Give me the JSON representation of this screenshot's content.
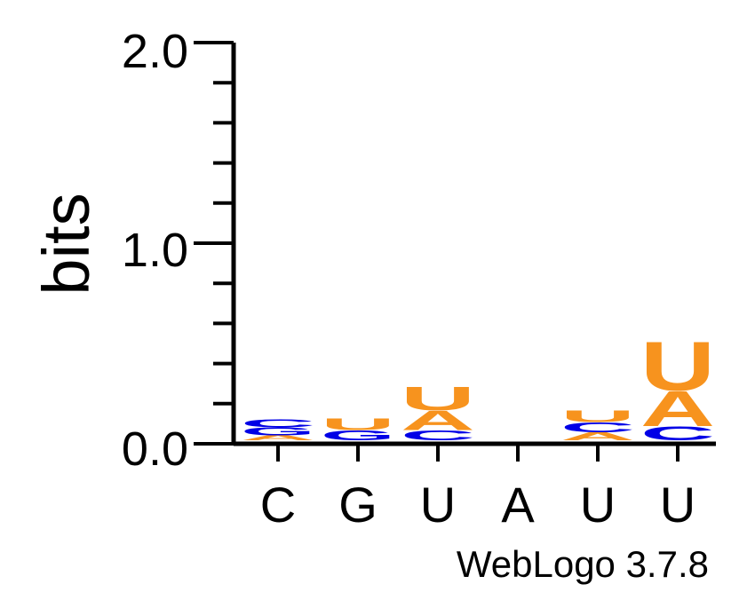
{
  "chart_data": {
    "type": "sequence-logo",
    "ylabel": "bits",
    "ylim": [
      0,
      2.0
    ],
    "y_ticks": [
      "0.0",
      "1.0",
      "2.0"
    ],
    "categories": [
      "C",
      "G",
      "U",
      "A",
      "U",
      "U"
    ],
    "footer": "WebLogo 3.7.8",
    "colors": {
      "A": "#f7931e",
      "U": "#f7931e",
      "G": "#0000e6",
      "C": "#0000e6"
    },
    "positions": [
      {
        "label": "C",
        "stack": [
          {
            "letter": "A",
            "bits": 0.025
          },
          {
            "letter": "G",
            "bits": 0.04
          },
          {
            "letter": "C",
            "bits": 0.04
          }
        ]
      },
      {
        "label": "G",
        "stack": [
          {
            "letter": "G",
            "bits": 0.05
          },
          {
            "letter": "U",
            "bits": 0.06
          }
        ]
      },
      {
        "label": "U",
        "stack": [
          {
            "letter": "C",
            "bits": 0.05
          },
          {
            "letter": "A",
            "bits": 0.1
          },
          {
            "letter": "U",
            "bits": 0.12
          }
        ]
      },
      {
        "label": "A",
        "stack": []
      },
      {
        "label": "U",
        "stack": [
          {
            "letter": "A",
            "bits": 0.04
          },
          {
            "letter": "C",
            "bits": 0.05
          },
          {
            "letter": "U",
            "bits": 0.06
          }
        ]
      },
      {
        "label": "U",
        "stack": [
          {
            "letter": "C",
            "bits": 0.07
          },
          {
            "letter": "A",
            "bits": 0.18
          },
          {
            "letter": "U",
            "bits": 0.25
          }
        ]
      }
    ]
  }
}
